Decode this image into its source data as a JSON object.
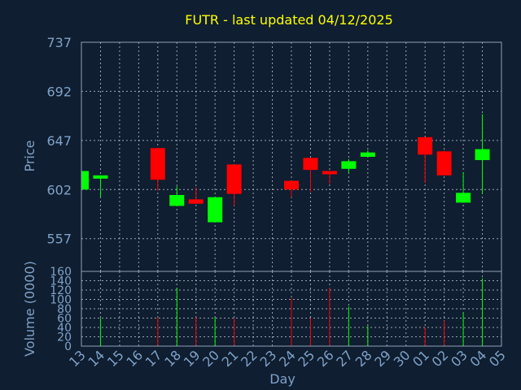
{
  "chart_data": {
    "type": "candlestick",
    "title": "FUTR - last updated 04/12/2025",
    "xlabel": "Day",
    "ylabel": "Price",
    "volume_label": "Volume (0000)",
    "price_ticks": [
      557,
      602,
      647,
      692,
      737
    ],
    "price_ylim": [
      527,
      737
    ],
    "volume_ticks": [
      0,
      20,
      40,
      60,
      80,
      100,
      120,
      140,
      160
    ],
    "volume_ylim": [
      0,
      160
    ],
    "grid": true,
    "colors": {
      "up": "#00ff00",
      "down": "#ff0000",
      "title": "#ffff00",
      "axis_text": "#7fa2c9",
      "background": "#0f1e30"
    },
    "days": [
      "13",
      "14",
      "15",
      "16",
      "17",
      "18",
      "19",
      "20",
      "21",
      "22",
      "23",
      "24",
      "25",
      "26",
      "27",
      "28",
      "29",
      "30",
      "01",
      "02",
      "03",
      "04",
      "05"
    ],
    "candles": [
      {
        "day": "13",
        "open": 602,
        "close": 619,
        "high": 619,
        "low": 602,
        "volume": 0
      },
      {
        "day": "14",
        "open": 612,
        "close": 615,
        "high": 615,
        "low": 595,
        "volume": 60
      },
      {
        "day": "17",
        "open": 640,
        "close": 611,
        "high": 640,
        "low": 601,
        "volume": 62
      },
      {
        "day": "18",
        "open": 587,
        "close": 597,
        "high": 605,
        "low": 587,
        "volume": 125
      },
      {
        "day": "19",
        "open": 593,
        "close": 589,
        "high": 604,
        "low": 589,
        "volume": 62
      },
      {
        "day": "20",
        "open": 572,
        "close": 595,
        "high": 595,
        "low": 572,
        "volume": 62
      },
      {
        "day": "21",
        "open": 625,
        "close": 598,
        "high": 625,
        "low": 587,
        "volume": 60
      },
      {
        "day": "24",
        "open": 610,
        "close": 602,
        "high": 610,
        "low": 595,
        "volume": 103
      },
      {
        "day": "25",
        "open": 631,
        "close": 620,
        "high": 631,
        "low": 600,
        "volume": 60
      },
      {
        "day": "26",
        "open": 619,
        "close": 616,
        "high": 619,
        "low": 607,
        "volume": 125
      },
      {
        "day": "27",
        "open": 621,
        "close": 628,
        "high": 630,
        "low": 617,
        "volume": 85
      },
      {
        "day": "28",
        "open": 632,
        "close": 636,
        "high": 638,
        "low": 632,
        "volume": 43
      },
      {
        "day": "01",
        "open": 650,
        "close": 634,
        "high": 650,
        "low": 608,
        "volume": 40
      },
      {
        "day": "02",
        "open": 637,
        "close": 615,
        "high": 638,
        "low": 615,
        "volume": 55
      },
      {
        "day": "03",
        "open": 590,
        "close": 599,
        "high": 618,
        "low": 590,
        "volume": 72
      },
      {
        "day": "04",
        "open": 629,
        "close": 639,
        "high": 671,
        "low": 598,
        "volume": 145
      }
    ]
  }
}
